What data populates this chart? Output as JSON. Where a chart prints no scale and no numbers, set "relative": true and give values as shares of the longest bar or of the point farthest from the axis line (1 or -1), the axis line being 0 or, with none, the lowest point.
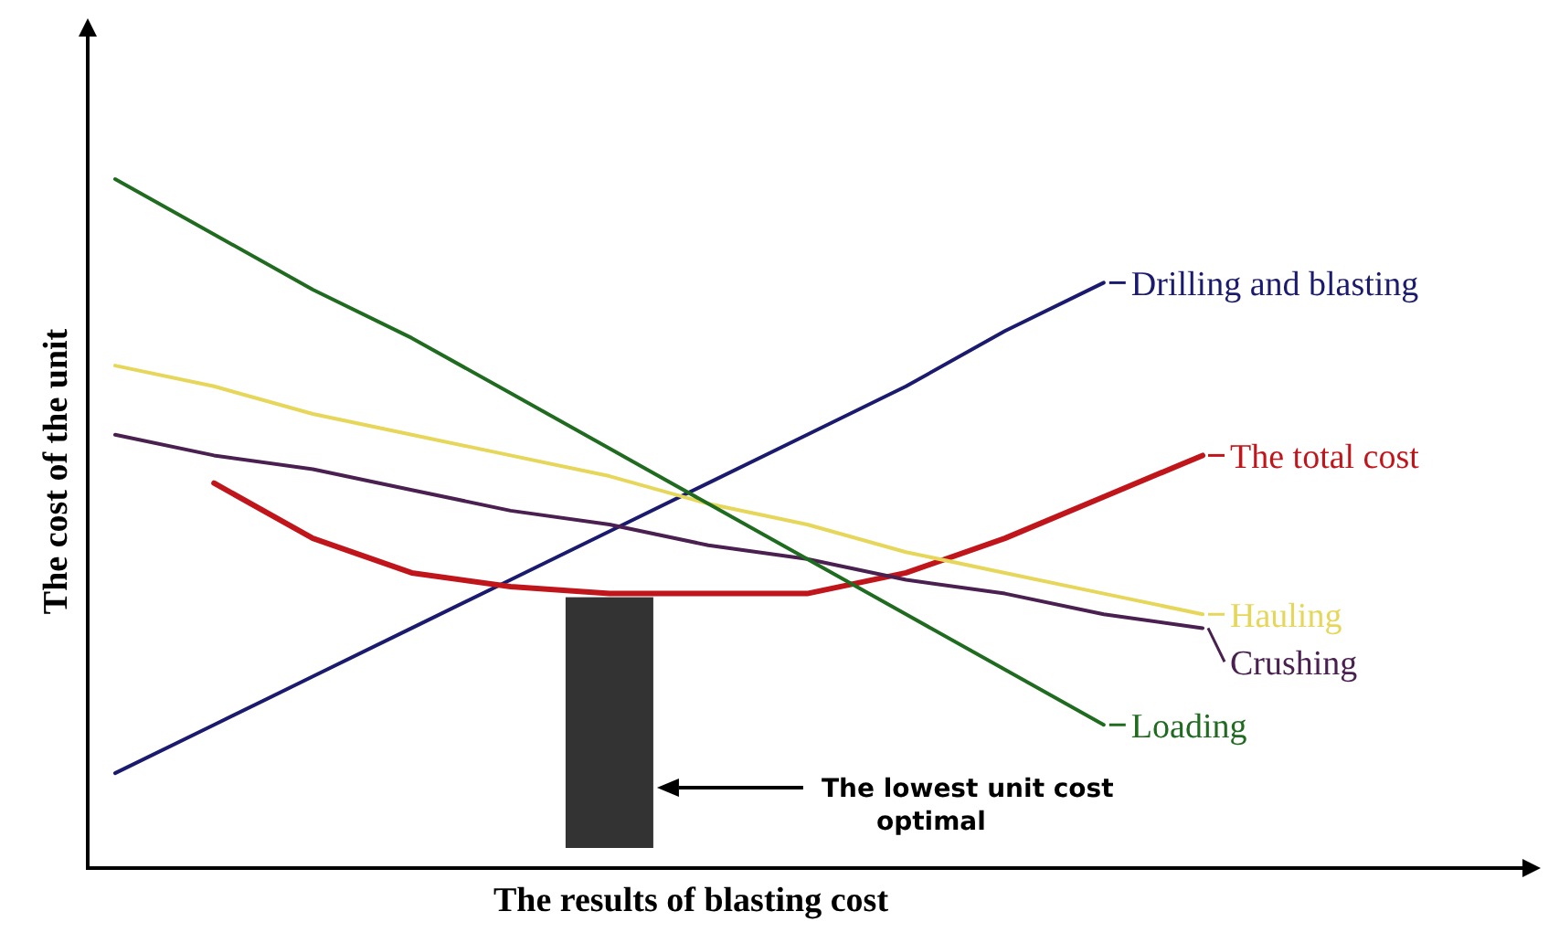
{
  "chart_data": {
    "type": "line",
    "relative": true,
    "legend": "right",
    "xlabel": "The results of blasting cost",
    "ylabel": "The cost of the unit",
    "categories": [
      null,
      null,
      null,
      null,
      null,
      null,
      null,
      null,
      null,
      null,
      null,
      null
    ],
    "series": [
      {
        "name": "Drilling and blasting",
        "color": "#1a1a6e",
        "values": [
          0.14,
          0.21,
          0.28,
          0.35,
          0.42,
          0.49,
          0.56,
          0.63,
          0.7,
          0.78,
          0.85,
          null
        ]
      },
      {
        "name": "The total cost",
        "color": "#c0161b",
        "values": [
          null,
          0.56,
          0.48,
          0.43,
          0.41,
          0.4,
          0.4,
          0.4,
          0.43,
          0.48,
          0.54,
          0.6
        ]
      },
      {
        "name": "Hauling",
        "color": "#e6d65a",
        "values": [
          0.73,
          0.7,
          0.66,
          0.63,
          0.6,
          0.57,
          0.53,
          0.5,
          0.46,
          0.43,
          0.4,
          0.37
        ]
      },
      {
        "name": "Crushing",
        "color": "#4a2050",
        "values": [
          0.63,
          0.6,
          0.58,
          0.55,
          0.52,
          0.5,
          0.47,
          0.45,
          0.42,
          0.4,
          0.37,
          0.35
        ]
      },
      {
        "name": "Loading",
        "color": "#1f6b1f",
        "values": [
          1,
          0.92,
          0.84,
          0.77,
          0.69,
          0.61,
          0.53,
          0.45,
          0.37,
          0.29,
          0.21,
          null
        ]
      }
    ],
    "annotations": [
      "The lowest unit cost optimal"
    ]
  }
}
